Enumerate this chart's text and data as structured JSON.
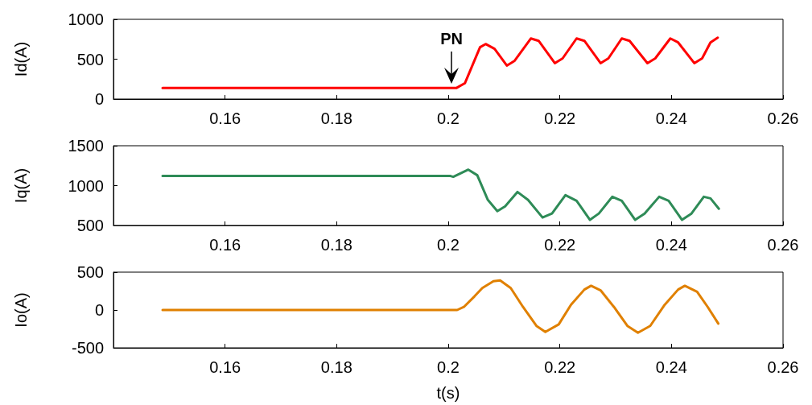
{
  "chart_data": [
    {
      "type": "line",
      "ylabel": "Id(A)",
      "xlim": [
        0.14,
        0.26
      ],
      "xticks": [
        0.16,
        0.18,
        0.2,
        0.22,
        0.24,
        0.26
      ],
      "ylim": [
        0,
        1000
      ],
      "yticks": [
        0,
        500,
        1000
      ],
      "grid": false,
      "annotations": [
        "PN"
      ],
      "series": [
        {
          "color": "#ff0000",
          "x": [
            0.1488,
            0.2015,
            0.203,
            0.2045,
            0.2057,
            0.2067,
            0.2083,
            0.2105,
            0.2119,
            0.2148,
            0.2162,
            0.2191,
            0.2205,
            0.223,
            0.2244,
            0.2273,
            0.2287,
            0.2311,
            0.2325,
            0.2357,
            0.2371,
            0.2398,
            0.2412,
            0.2441,
            0.2455,
            0.247,
            0.2483
          ],
          "values": [
            140,
            140,
            200,
            450,
            650,
            690,
            630,
            420,
            480,
            760,
            730,
            450,
            510,
            760,
            730,
            450,
            510,
            760,
            730,
            450,
            510,
            760,
            710,
            450,
            510,
            710,
            770
          ]
        }
      ]
    },
    {
      "type": "line",
      "ylabel": "Iq(A)",
      "xlim": [
        0.14,
        0.26
      ],
      "xticks": [
        0.16,
        0.18,
        0.2,
        0.22,
        0.24,
        0.26
      ],
      "ylim": [
        500,
        1500
      ],
      "yticks": [
        500,
        1000,
        1500
      ],
      "grid": false,
      "series": [
        {
          "color": "#2e8b57",
          "x": [
            0.1488,
            0.2004,
            0.2009,
            0.2021,
            0.2036,
            0.2052,
            0.2071,
            0.2088,
            0.2102,
            0.2124,
            0.2143,
            0.2169,
            0.2186,
            0.221,
            0.223,
            0.2254,
            0.227,
            0.2294,
            0.2311,
            0.2335,
            0.2352,
            0.2378,
            0.2395,
            0.2419,
            0.2436,
            0.2458,
            0.247,
            0.2485
          ],
          "values": [
            1120,
            1120,
            1110,
            1150,
            1200,
            1130,
            820,
            680,
            740,
            920,
            820,
            600,
            650,
            880,
            810,
            570,
            650,
            860,
            810,
            570,
            650,
            860,
            810,
            570,
            650,
            860,
            840,
            710
          ]
        }
      ]
    },
    {
      "type": "line",
      "xlabel": "t(s)",
      "ylabel": "Io(A)",
      "xlim": [
        0.14,
        0.26
      ],
      "xticks": [
        0.16,
        0.18,
        0.2,
        0.22,
        0.24,
        0.26
      ],
      "ylim": [
        -500,
        500
      ],
      "yticks": [
        -500,
        0,
        500
      ],
      "grid": false,
      "series": [
        {
          "color": "#e08000",
          "x": [
            0.1488,
            0.2016,
            0.2028,
            0.2047,
            0.2061,
            0.2081,
            0.2093,
            0.2112,
            0.2134,
            0.2158,
            0.2174,
            0.2198,
            0.222,
            0.2244,
            0.2256,
            0.2273,
            0.2297,
            0.2321,
            0.234,
            0.2362,
            0.2388,
            0.2412,
            0.2424,
            0.2446,
            0.2465,
            0.2484
          ],
          "values": [
            0,
            0,
            40,
            180,
            290,
            380,
            390,
            290,
            40,
            -210,
            -290,
            -190,
            70,
            270,
            320,
            260,
            40,
            -210,
            -300,
            -210,
            70,
            270,
            320,
            240,
            40,
            -180
          ]
        }
      ]
    }
  ]
}
